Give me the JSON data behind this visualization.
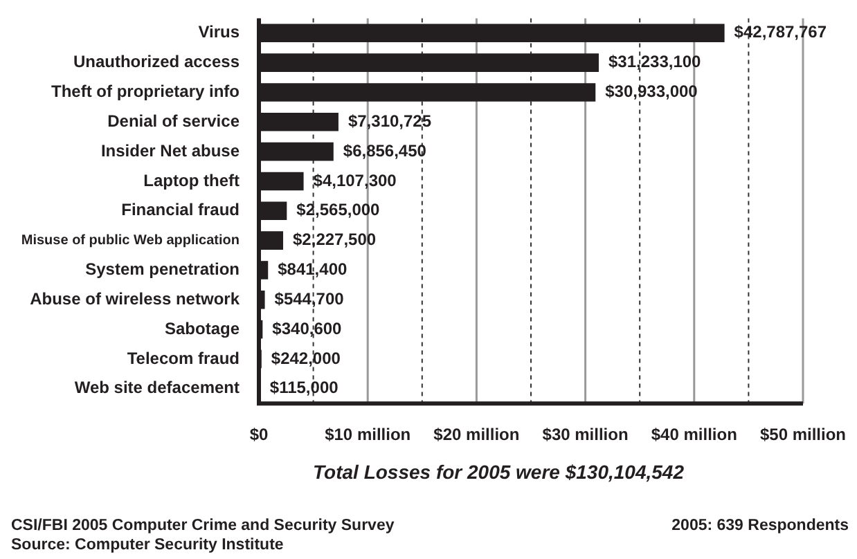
{
  "chart_data": {
    "type": "bar",
    "orientation": "horizontal",
    "categories": [
      "Virus",
      "Unauthorized access",
      "Theft of proprietary info",
      "Denial of service",
      "Insider Net abuse",
      "Laptop theft",
      "Financial fraud",
      "Misuse of public Web application",
      "System penetration",
      "Abuse of wireless network",
      "Sabotage",
      "Telecom fraud",
      "Web site defacement"
    ],
    "values": [
      42787767,
      31233100,
      30933000,
      7310725,
      6856450,
      4107300,
      2565000,
      2227500,
      841400,
      544700,
      340600,
      242000,
      115000
    ],
    "value_labels": [
      "$42,787,767",
      "$31,233,100",
      "$30,933,000",
      "$7,310,725",
      "$6,856,450",
      "$4,107,300",
      "$2,565,000",
      "$2,227,500",
      "$841,400",
      "$544,700",
      "$340,600",
      "$242,000",
      "$115,000"
    ],
    "color": "#231f20",
    "xlim": [
      0,
      50000000
    ],
    "xticks": [
      {
        "value": 0,
        "label": "$0"
      },
      {
        "value": 5000000,
        "label": null
      },
      {
        "value": 10000000,
        "label": "$10 million"
      },
      {
        "value": 15000000,
        "label": null
      },
      {
        "value": 20000000,
        "label": "$20 million"
      },
      {
        "value": 25000000,
        "label": null
      },
      {
        "value": 30000000,
        "label": "$30 million"
      },
      {
        "value": 35000000,
        "label": null
      },
      {
        "value": 40000000,
        "label": "$40 million"
      },
      {
        "value": 45000000,
        "label": null
      },
      {
        "value": 50000000,
        "label": "$50 million"
      }
    ],
    "grid": "x",
    "legend": false,
    "annotations": [
      "Total Losses for 2005 were $130,104,542",
      "CSI/FBI 2005 Computer Crime and Security Survey",
      "Source: Computer Security Institute",
      "2005: 639 Respondents"
    ]
  }
}
